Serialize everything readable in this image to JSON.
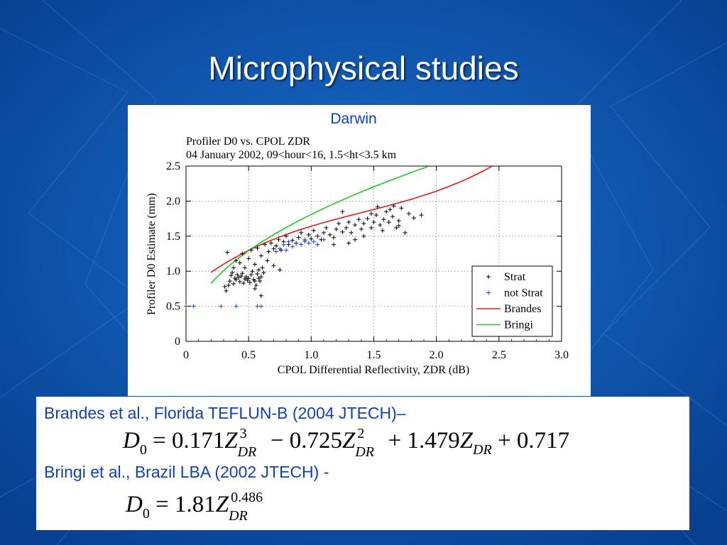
{
  "slide": {
    "title": "Microphysical studies",
    "colors": {
      "background": "#0b56b0",
      "title": "#ffffff",
      "reference_text": "#1240b4"
    }
  },
  "chart_panel": {
    "heading": "Darwin"
  },
  "chart_data": {
    "type": "scatter",
    "title": "Profiler D0 vs. CPOL ZDR",
    "subtitle": "04 January 2002, 09<hour<16, 1.5<ht<3.5 km",
    "xlabel": "CPOL Differential Reflectivity, ZDR (dB)",
    "ylabel": "Profiler D0 Estimate (mm)",
    "xlim": [
      0,
      3.0
    ],
    "ylim": [
      0,
      2.5
    ],
    "x_ticks": [
      "0",
      "0.5",
      "1.0",
      "1.5",
      "2.0",
      "2.5",
      "3.0"
    ],
    "y_ticks": [
      "0",
      "0.5",
      "1.0",
      "1.5",
      "2.0",
      "2.5"
    ],
    "grid": true,
    "legend_placement": "lower-right",
    "series": [
      {
        "name": "Strat",
        "kind": "points",
        "marker": "+",
        "color": "#000000",
        "points": [
          [
            0.33,
            1.27
          ],
          [
            0.31,
            0.78
          ],
          [
            0.32,
            0.72
          ],
          [
            0.34,
            0.8
          ],
          [
            0.35,
            0.86
          ],
          [
            0.36,
            0.94
          ],
          [
            0.37,
            0.98
          ],
          [
            0.38,
            0.82
          ],
          [
            0.39,
            0.9
          ],
          [
            0.4,
            0.88
          ],
          [
            0.41,
            0.95
          ],
          [
            0.42,
            0.91
          ],
          [
            0.43,
            0.85
          ],
          [
            0.44,
            0.93
          ],
          [
            0.45,
            0.97
          ],
          [
            0.46,
            0.83
          ],
          [
            0.47,
            0.89
          ],
          [
            0.48,
            0.92
          ],
          [
            0.49,
            0.87
          ],
          [
            0.5,
            0.9
          ],
          [
            0.51,
            0.84
          ],
          [
            0.52,
            0.95
          ],
          [
            0.53,
            1.0
          ],
          [
            0.54,
            0.88
          ],
          [
            0.55,
            0.86
          ],
          [
            0.56,
            0.8
          ],
          [
            0.57,
            0.96
          ],
          [
            0.58,
            0.9
          ],
          [
            0.59,
            0.86
          ],
          [
            0.6,
            0.92
          ],
          [
            0.61,
            1.05
          ],
          [
            0.62,
            0.98
          ],
          [
            0.43,
            1.12
          ],
          [
            0.47,
            1.05
          ],
          [
            0.5,
            1.18
          ],
          [
            0.55,
            1.1
          ],
          [
            0.58,
            1.02
          ],
          [
            0.38,
            1.05
          ],
          [
            0.4,
            1.15
          ],
          [
            0.45,
            1.25
          ],
          [
            0.52,
            1.3
          ],
          [
            0.57,
            1.33
          ],
          [
            0.6,
            1.22
          ],
          [
            0.63,
            1.38
          ],
          [
            0.66,
            1.28
          ],
          [
            0.68,
            1.4
          ],
          [
            0.7,
            1.32
          ],
          [
            0.72,
            1.36
          ],
          [
            0.74,
            1.45
          ],
          [
            0.76,
            1.3
          ],
          [
            0.78,
            1.42
          ],
          [
            0.8,
            1.5
          ],
          [
            0.82,
            1.38
          ],
          [
            0.85,
            1.44
          ],
          [
            0.88,
            1.4
          ],
          [
            0.9,
            1.48
          ],
          [
            0.92,
            1.55
          ],
          [
            0.95,
            1.43
          ],
          [
            0.98,
            1.52
          ],
          [
            1.0,
            1.46
          ],
          [
            1.02,
            1.58
          ],
          [
            1.05,
            1.5
          ],
          [
            1.08,
            1.45
          ],
          [
            1.1,
            1.55
          ],
          [
            1.12,
            1.62
          ],
          [
            1.15,
            1.52
          ],
          [
            1.18,
            1.48
          ],
          [
            1.2,
            1.6
          ],
          [
            1.22,
            1.68
          ],
          [
            1.25,
            1.56
          ],
          [
            1.28,
            1.62
          ],
          [
            1.3,
            1.7
          ],
          [
            1.32,
            1.55
          ],
          [
            1.35,
            1.66
          ],
          [
            1.38,
            1.74
          ],
          [
            1.4,
            1.6
          ],
          [
            1.42,
            1.68
          ],
          [
            1.45,
            1.75
          ],
          [
            1.48,
            1.62
          ],
          [
            1.5,
            1.7
          ],
          [
            1.52,
            1.8
          ],
          [
            1.55,
            1.66
          ],
          [
            1.58,
            1.74
          ],
          [
            1.6,
            1.85
          ],
          [
            1.62,
            1.7
          ],
          [
            1.65,
            1.78
          ],
          [
            1.68,
            1.62
          ],
          [
            1.7,
            1.72
          ],
          [
            1.72,
            1.9
          ],
          [
            1.75,
            1.55
          ],
          [
            1.78,
            1.82
          ],
          [
            1.82,
            1.76
          ],
          [
            1.88,
            1.8
          ],
          [
            1.35,
            1.45
          ],
          [
            1.42,
            1.5
          ],
          [
            1.48,
            1.82
          ],
          [
            1.53,
            1.92
          ],
          [
            1.57,
            1.58
          ],
          [
            1.63,
            1.88
          ],
          [
            1.66,
            1.93
          ],
          [
            1.7,
            1.65
          ],
          [
            1.25,
            1.85
          ],
          [
            1.3,
            1.4
          ],
          [
            1.18,
            1.38
          ],
          [
            0.65,
            1.15
          ],
          [
            0.7,
            1.08
          ],
          [
            0.75,
            1.02
          ],
          [
            0.55,
            0.75
          ],
          [
            0.6,
            0.65
          ]
        ]
      },
      {
        "name": "not Strat",
        "kind": "points",
        "marker": "+",
        "color": "#1a3fd6",
        "points": [
          [
            0.0,
            0.5
          ],
          [
            0.06,
            0.5
          ],
          [
            0.28,
            0.5
          ],
          [
            0.4,
            0.5
          ],
          [
            0.57,
            0.5
          ],
          [
            0.6,
            0.5
          ],
          [
            0.75,
            1.32
          ],
          [
            0.78,
            1.38
          ],
          [
            0.8,
            1.3
          ],
          [
            0.82,
            1.42
          ],
          [
            0.85,
            1.35
          ],
          [
            0.88,
            1.4
          ],
          [
            0.92,
            1.38
          ],
          [
            0.95,
            1.45
          ],
          [
            0.98,
            1.4
          ],
          [
            1.02,
            1.42
          ],
          [
            1.05,
            1.38
          ],
          [
            1.1,
            1.45
          ],
          [
            0.72,
            1.28
          ]
        ]
      },
      {
        "name": "Brandes",
        "kind": "curve",
        "color": "#e41a1c",
        "formula": "D0 = 0.171 ZDR^3 - 0.725 ZDR^2 + 1.479 ZDR + 0.717",
        "x_range": [
          0.2,
          2.5
        ]
      },
      {
        "name": "Bringi",
        "kind": "curve",
        "color": "#22cc22",
        "formula": "D0 = 1.81 ZDR^0.486",
        "x_range": [
          0.2,
          2.0
        ]
      }
    ]
  },
  "references": [
    {
      "text": "Brandes et al., Florida TEFLUN-B (2004 JTECH)–"
    },
    {
      "text": "Bringi et al., Brazil LBA (2002 JTECH) -"
    }
  ],
  "equations": {
    "brandes": {
      "lhs": "D",
      "lhs_sub": "0",
      "eq": "=",
      "c1": "0.171",
      "c2": "0.725",
      "c3": "1.479",
      "c4": "0.717",
      "var": "Z",
      "var_sub": "DR",
      "exp1": "3",
      "exp2": "2",
      "minus": "−",
      "plus": "+"
    },
    "bringi": {
      "lhs": "D",
      "lhs_sub": "0",
      "eq": "=",
      "coef": "1.81",
      "var": "Z",
      "var_sub": "DR",
      "exp": "0.486"
    }
  }
}
